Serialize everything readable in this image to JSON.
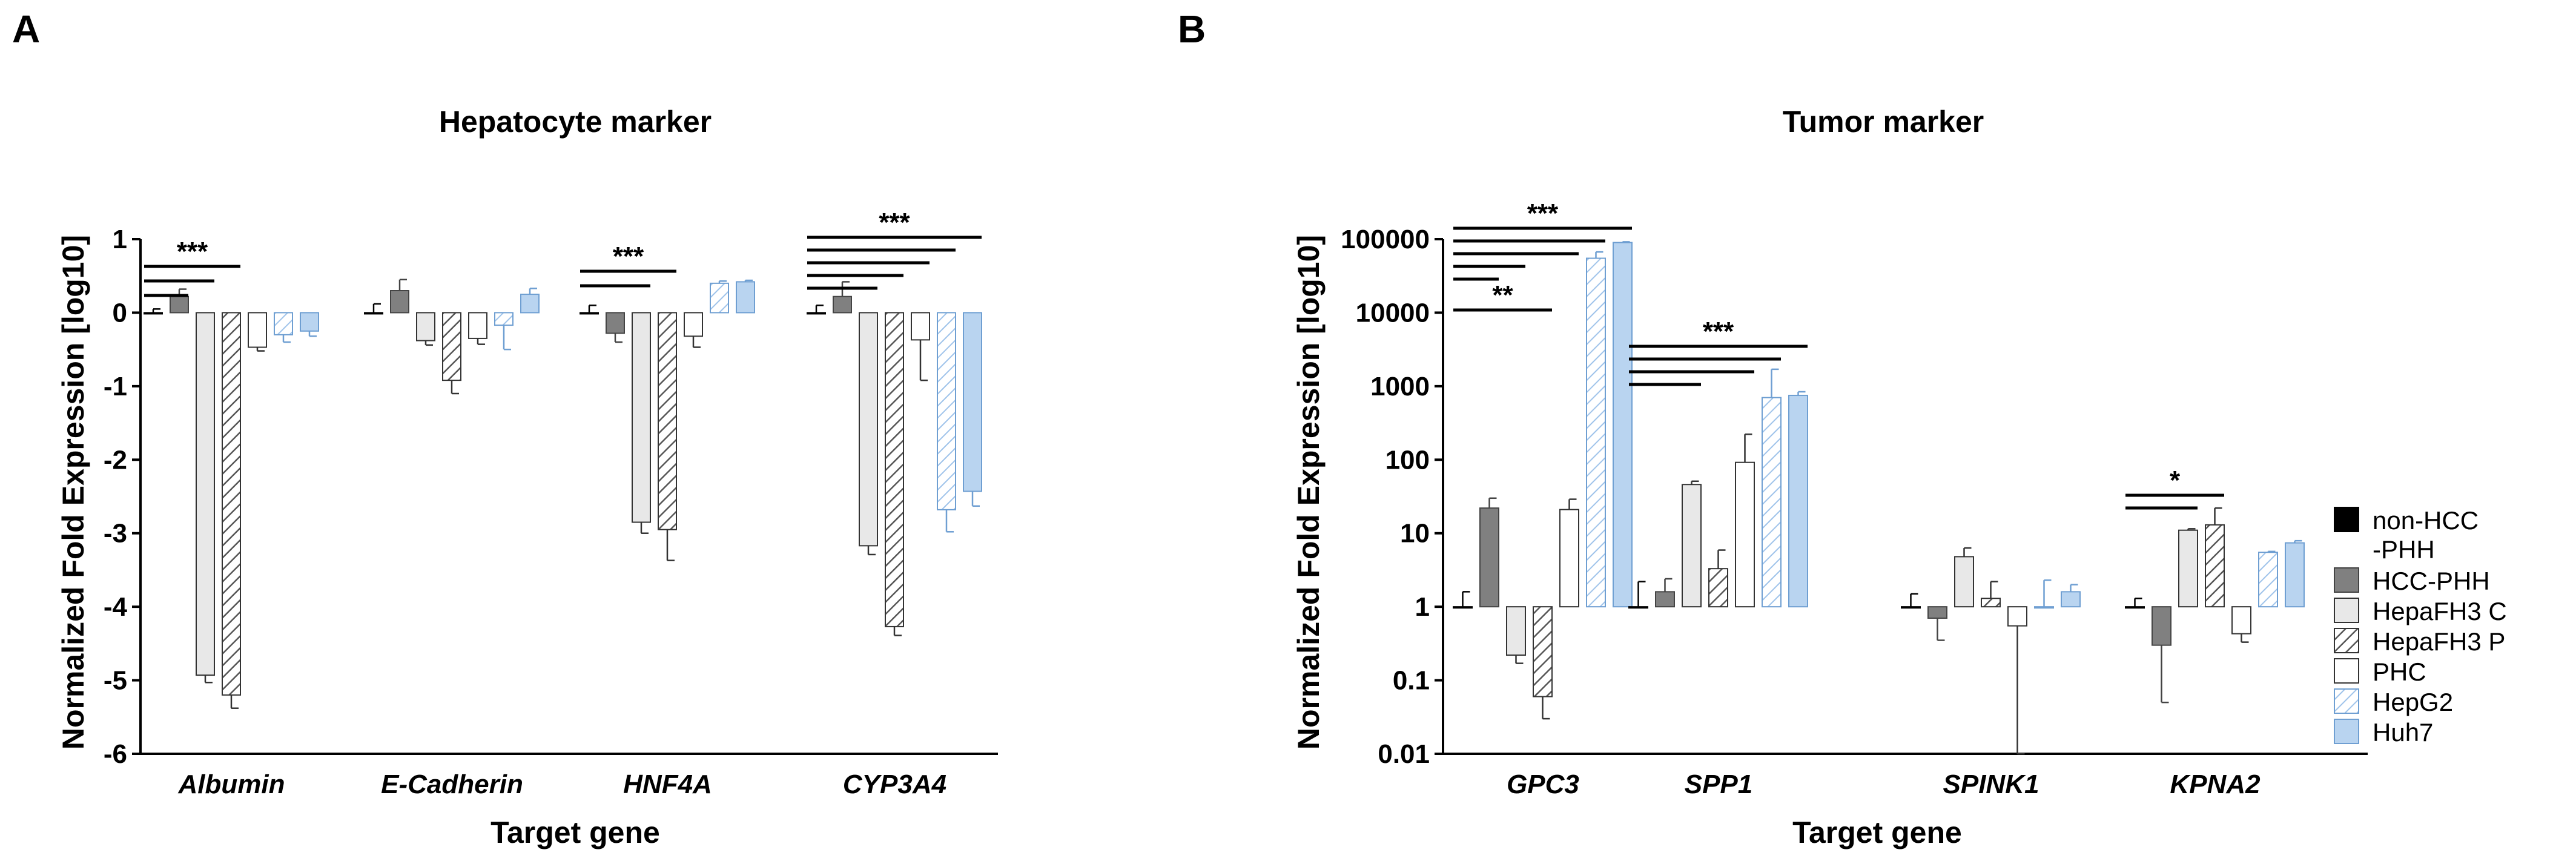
{
  "chart_data": [
    {
      "panel": "A",
      "type": "bar",
      "title": "Hepatocyte marker",
      "xlabel": "Target gene",
      "ylabel": "Normalized Fold Expression [log10]",
      "yscale": "linear",
      "ylim": [
        -6,
        1
      ],
      "yticks": [
        1,
        0,
        -1,
        -2,
        -3,
        -4,
        -5,
        -6
      ],
      "ytick_labels": [
        "1",
        "0",
        "-1",
        "-2",
        "-3",
        "-4",
        "-5",
        "-6"
      ],
      "categories": [
        "Albumin",
        "E-Cadherin",
        "HNF4A",
        "CYP3A4"
      ],
      "series": [
        {
          "name": "non-HCC -PHH",
          "values": [
            0,
            0,
            0,
            0
          ],
          "errors": [
            0.05,
            0.12,
            0.1,
            0.1
          ]
        },
        {
          "name": "HCC-PHH",
          "values": [
            0.22,
            0.3,
            -0.28,
            0.22
          ],
          "errors": [
            0.1,
            0.15,
            0.12,
            0.2
          ]
        },
        {
          "name": "HepaFH3 C",
          "values": [
            -4.93,
            -0.38,
            -2.85,
            -3.17
          ],
          "errors": [
            0.1,
            0.06,
            0.15,
            0.12
          ]
        },
        {
          "name": "HepaFH3 P",
          "values": [
            -5.2,
            -0.92,
            -2.95,
            -4.27
          ],
          "errors": [
            0.18,
            0.18,
            0.42,
            0.12
          ]
        },
        {
          "name": "PHC",
          "values": [
            -0.47,
            -0.35,
            -0.32,
            -0.37
          ],
          "errors": [
            0.05,
            0.08,
            0.15,
            0.55
          ]
        },
        {
          "name": "HepG2",
          "values": [
            -0.3,
            -0.17,
            0.4,
            -2.68
          ],
          "errors": [
            0.1,
            0.33,
            0.03,
            0.3
          ]
        },
        {
          "name": "Huh7",
          "values": [
            -0.25,
            0.25,
            0.42,
            -2.43
          ],
          "errors": [
            0.07,
            0.08,
            0.02,
            0.2
          ]
        }
      ],
      "significance": [
        {
          "category": "Albumin",
          "label": "***",
          "bars": [
            [
              "non-HCC -PHH",
              "HCC-PHH"
            ],
            [
              "non-HCC -PHH",
              "HepaFH3 C"
            ],
            [
              "non-HCC -PHH",
              "HepaFH3 P"
            ]
          ]
        },
        {
          "category": "HNF4A",
          "label": "***",
          "bars": [
            [
              "non-HCC -PHH",
              "HepaFH3 C"
            ],
            [
              "non-HCC -PHH",
              "HepaFH3 P"
            ]
          ]
        },
        {
          "category": "CYP3A4",
          "label": "***",
          "bars": [
            [
              "non-HCC -PHH",
              "HepaFH3 C"
            ],
            [
              "non-HCC -PHH",
              "HepaFH3 P"
            ],
            [
              "non-HCC -PHH",
              "PHC"
            ],
            [
              "non-HCC -PHH",
              "HepG2"
            ],
            [
              "non-HCC -PHH",
              "Huh7"
            ]
          ]
        }
      ]
    },
    {
      "panel": "B",
      "type": "bar",
      "title": "Tumor marker",
      "xlabel": "Target gene",
      "ylabel": "Normalized Fold Expression [log10]",
      "yscale": "log",
      "ylim": [
        0.01,
        100000
      ],
      "yticks": [
        100000,
        10000,
        1000,
        100,
        10,
        1,
        0.1,
        0.01
      ],
      "ytick_labels": [
        "100000",
        "10000",
        "1000",
        "100",
        "10",
        "1",
        "0.1",
        "0.01"
      ],
      "categories": [
        "GPC3",
        "SPP1",
        "SPINK1",
        "KPNA2"
      ],
      "series": [
        {
          "name": "non-HCC -PHH",
          "values": [
            1,
            1,
            1,
            1
          ],
          "errors": [
            0.6,
            1.2,
            0.5,
            0.3
          ]
        },
        {
          "name": "HCC-PHH",
          "values": [
            22,
            1.6,
            0.7,
            0.3
          ],
          "errors": [
            8,
            0.8,
            0.35,
            0.25
          ]
        },
        {
          "name": "HepaFH3 C",
          "values": [
            0.22,
            46,
            4.8,
            11
          ],
          "errors": [
            0.05,
            5,
            1.5,
            0.5
          ]
        },
        {
          "name": "HepaFH3 P",
          "values": [
            0.06,
            3.3,
            1.3,
            13
          ],
          "errors": [
            0.03,
            2.6,
            0.9,
            9
          ]
        },
        {
          "name": "PHC",
          "values": [
            21,
            92,
            0.55,
            0.43
          ],
          "errors": [
            8,
            130,
            0.9,
            0.1
          ]
        },
        {
          "name": "HepG2",
          "values": [
            55000,
            700,
            1.0,
            5.5
          ],
          "errors": [
            12000,
            1000,
            1.3,
            0.15
          ]
        },
        {
          "name": "Huh7",
          "values": [
            90000,
            750,
            1.6,
            7.4
          ],
          "errors": [
            2000,
            90,
            0.4,
            0.5
          ]
        }
      ],
      "significance": [
        {
          "category": "GPC3",
          "label": "***",
          "bars": [
            [
              "non-HCC -PHH",
              "HCC-PHH"
            ],
            [
              "non-HCC -PHH",
              "HepaFH3 C"
            ],
            [
              "non-HCC -PHH",
              "PHC"
            ],
            [
              "non-HCC -PHH",
              "HepG2"
            ],
            [
              "non-HCC -PHH",
              "Huh7"
            ]
          ]
        },
        {
          "category": "GPC3",
          "label": "**",
          "bars": [
            [
              "non-HCC -PHH",
              "HepaFH3 P"
            ]
          ]
        },
        {
          "category": "SPP1",
          "label": "***",
          "bars": [
            [
              "non-HCC -PHH",
              "HepaFH3 C"
            ],
            [
              "non-HCC -PHH",
              "PHC"
            ],
            [
              "non-HCC -PHH",
              "HepG2"
            ],
            [
              "non-HCC -PHH",
              "Huh7"
            ]
          ]
        },
        {
          "category": "KPNA2",
          "label": "*",
          "bars": [
            [
              "non-HCC -PHH",
              "HepaFH3 C"
            ],
            [
              "non-HCC -PHH",
              "HepaFH3 P"
            ]
          ]
        }
      ]
    }
  ],
  "legend": {
    "entries": [
      {
        "name": "non-HCC -PHH",
        "lines": [
          "non-HCC",
          "-PHH"
        ],
        "fill": "#000000",
        "pattern": "none"
      },
      {
        "name": "HCC-PHH",
        "lines": [
          "HCC-PHH"
        ],
        "fill": "#808080",
        "pattern": "none"
      },
      {
        "name": "HepaFH3 C",
        "lines": [
          "HepaFH3 C"
        ],
        "fill": "#e8e8e8",
        "pattern": "none"
      },
      {
        "name": "HepaFH3 P",
        "lines": [
          "HepaFH3 P"
        ],
        "fill": "#ffffff",
        "pattern": "hatch"
      },
      {
        "name": "PHC",
        "lines": [
          "PHC"
        ],
        "fill": "#ffffff",
        "pattern": "none"
      },
      {
        "name": "HepG2",
        "lines": [
          "HepG2"
        ],
        "fill": "#ffffff",
        "pattern": "blue-hatch"
      },
      {
        "name": "Huh7",
        "lines": [
          "Huh7"
        ],
        "fill": "#b9d4f0",
        "pattern": "none"
      }
    ]
  },
  "colors": {
    "non_hcc_phh": "#000000",
    "hcc_phh": "#808080",
    "hepafh3_c": "#e8e8e8",
    "hepafh3_p_hatch": "#555555",
    "hepg2_hatch": "#9fc3ea",
    "huh7": "#b9d4f0",
    "outline": "#333333"
  }
}
